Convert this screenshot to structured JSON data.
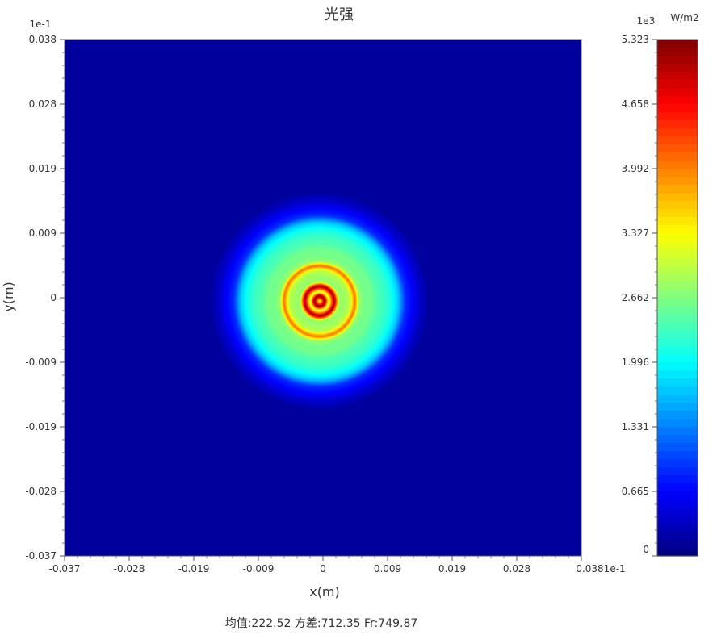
{
  "chart_data": {
    "type": "heatmap",
    "title": "光强",
    "xlabel": "x(m)",
    "ylabel": "y(m)",
    "x_scale_label": "1e-1",
    "y_scale_label": "1e-1",
    "xlim": [
      -0.037,
      0.038
    ],
    "ylim": [
      -0.037,
      0.038
    ],
    "x_ticks": [
      "-0.037",
      "-0.028",
      "-0.019",
      "-0.009",
      "0",
      "0.009",
      "0.019",
      "0.028",
      "0.038"
    ],
    "y_ticks": [
      "0.038",
      "0.028",
      "0.019",
      "0.009",
      "0",
      "-0.009",
      "-0.019",
      "-0.028",
      "-0.037"
    ],
    "colorbar": {
      "scale_label": "1e3",
      "unit": "W/m2",
      "min": 0,
      "max": 5.323,
      "ticks": [
        "5.323",
        "4.658",
        "3.992",
        "3.327",
        "2.662",
        "1.996",
        "1.331",
        "0.665",
        "0"
      ],
      "colormap": "jet",
      "colors": [
        "#00007f",
        "#0000ff",
        "#0080ff",
        "#00ffff",
        "#80ff80",
        "#ffff00",
        "#ff8000",
        "#ff0000",
        "#7f0000"
      ]
    },
    "radial_profile": {
      "description_units": "radius in chart x units (1e-1 m), intensity in 1e3 W/m2",
      "r": [
        0.0,
        0.0008,
        0.0014,
        0.0022,
        0.0029,
        0.0037,
        0.0045,
        0.0052,
        0.0058,
        0.0066,
        0.0075,
        0.0085,
        0.0095,
        0.0105,
        0.0115,
        0.0125,
        0.015,
        0.038
      ],
      "value": [
        3.0,
        5.3,
        3.0,
        5.2,
        2.8,
        2.8,
        3.0,
        4.1,
        2.8,
        2.6,
        2.6,
        2.4,
        2.3,
        2.1,
        1.7,
        0.9,
        0.3,
        0.15
      ],
      "background_value": 0.15
    }
  },
  "stats": {
    "text": "均值:222.52  方差:712.35  Fr:749.87"
  }
}
